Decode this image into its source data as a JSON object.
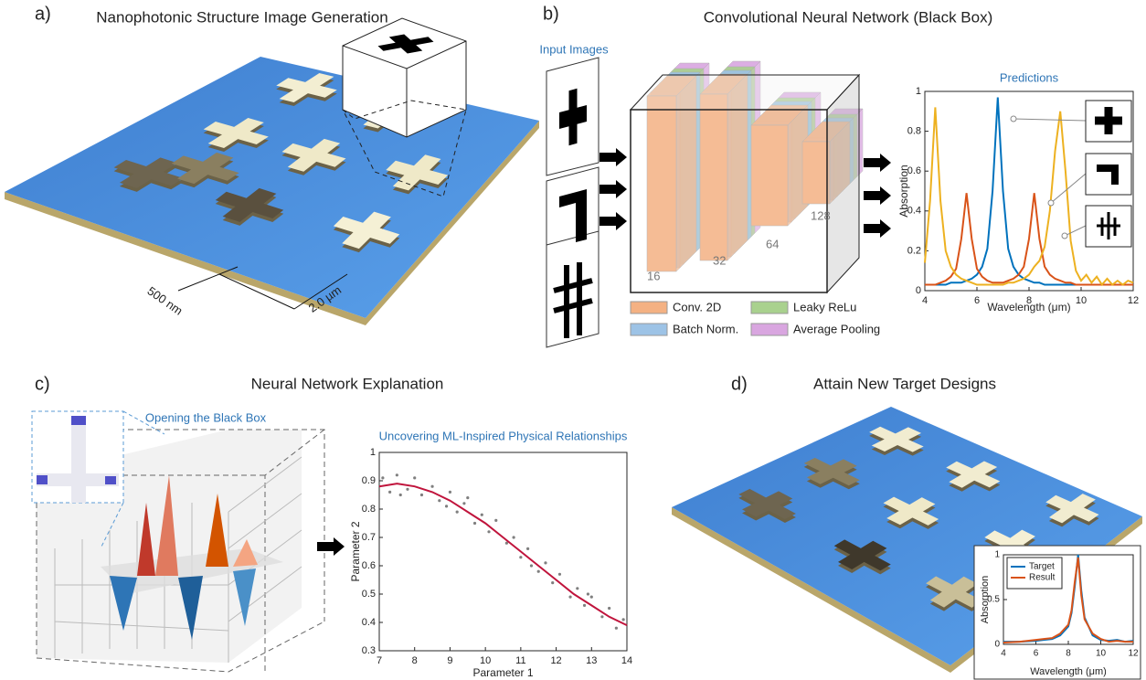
{
  "panels": [
    {
      "label": "a)",
      "title": "Nanophotonic Structure Image Generation",
      "annotations": [
        "500 nm",
        "2.0 µm"
      ]
    },
    {
      "label": "b)",
      "title": "Convolutional Neural Network (Black Box)",
      "input_title": "Input Images",
      "layer_sizes": [
        16,
        32,
        64,
        128
      ],
      "legend": [
        "Conv. 2D",
        "Leaky ReLu",
        "Batch Norm.",
        "Average Pooling"
      ]
    },
    {
      "label": "c)",
      "title": "Neural Network Explanation",
      "subtitle": "Opening the Black Box"
    },
    {
      "label": "d)",
      "title": "Attain New Target Designs"
    }
  ],
  "chart_data": [
    {
      "type": "line",
      "title": "Predictions",
      "xlabel": "Wavelength (μm)",
      "ylabel": "Absorption",
      "x": [
        4.0,
        4.2,
        4.4,
        4.6,
        4.8,
        5.0,
        5.2,
        5.4,
        5.6,
        5.8,
        6.0,
        6.2,
        6.4,
        6.6,
        6.8,
        7.0,
        7.2,
        7.4,
        7.6,
        7.8,
        8.0,
        8.2,
        8.4,
        8.6,
        8.8,
        9.0,
        9.2,
        9.4,
        9.6,
        9.8,
        10.0,
        10.2,
        10.4,
        10.6,
        10.8,
        11.0,
        11.2,
        11.4,
        11.6,
        11.8,
        12.0
      ],
      "series": [
        {
          "color": "#0072bd",
          "values": [
            0.03,
            0.03,
            0.03,
            0.03,
            0.03,
            0.04,
            0.04,
            0.04,
            0.05,
            0.06,
            0.08,
            0.12,
            0.21,
            0.5,
            0.97,
            0.5,
            0.21,
            0.12,
            0.08,
            0.06,
            0.05,
            0.04,
            0.04,
            0.03,
            0.03,
            0.03,
            0.03,
            0.03,
            0.03,
            0.03,
            0.03,
            0.03,
            0.03,
            0.03,
            0.03,
            0.03,
            0.03,
            0.03,
            0.03,
            0.03,
            0.03
          ]
        },
        {
          "color": "#d95319",
          "values": [
            0.03,
            0.03,
            0.03,
            0.04,
            0.05,
            0.07,
            0.11,
            0.26,
            0.49,
            0.26,
            0.11,
            0.07,
            0.05,
            0.04,
            0.04,
            0.04,
            0.05,
            0.06,
            0.08,
            0.12,
            0.26,
            0.49,
            0.26,
            0.12,
            0.08,
            0.06,
            0.05,
            0.04,
            0.04,
            0.03,
            0.03,
            0.03,
            0.03,
            0.03,
            0.03,
            0.03,
            0.03,
            0.03,
            0.03,
            0.03,
            0.03
          ]
        },
        {
          "color": "#edb120",
          "values": [
            0.14,
            0.45,
            0.92,
            0.45,
            0.2,
            0.12,
            0.08,
            0.06,
            0.05,
            0.04,
            0.03,
            0.03,
            0.03,
            0.03,
            0.03,
            0.03,
            0.04,
            0.04,
            0.05,
            0.06,
            0.08,
            0.12,
            0.15,
            0.22,
            0.4,
            0.7,
            0.9,
            0.6,
            0.25,
            0.1,
            0.05,
            0.08,
            0.04,
            0.07,
            0.03,
            0.06,
            0.03,
            0.05,
            0.03,
            0.05,
            0.04
          ]
        }
      ],
      "xlim": [
        4,
        12
      ],
      "xticks": [
        4,
        6,
        8,
        10,
        12
      ],
      "ylim": [
        0,
        1
      ],
      "yticks": [
        0,
        0.2,
        0.4,
        0.6,
        0.8,
        1
      ]
    },
    {
      "type": "scatter",
      "title": "Uncovering ML-Inspired Physical Relationships",
      "xlabel": "Parameter 1",
      "ylabel": "Parameter 2",
      "series": [
        {
          "color": "#7f7f7f",
          "mode": "markers",
          "x": [
            7.1,
            7.3,
            7.5,
            7.8,
            8.0,
            8.2,
            8.5,
            8.7,
            9.0,
            9.2,
            9.4,
            9.7,
            9.9,
            10.1,
            10.3,
            10.6,
            10.8,
            11.0,
            11.2,
            11.5,
            11.7,
            11.9,
            12.1,
            12.4,
            12.6,
            12.8,
            13.0,
            13.3,
            13.5,
            13.7,
            13.9,
            7.6,
            9.5,
            11.3,
            12.9,
            8.9
          ],
          "values": [
            0.91,
            0.86,
            0.92,
            0.87,
            0.91,
            0.85,
            0.88,
            0.83,
            0.86,
            0.79,
            0.82,
            0.75,
            0.78,
            0.72,
            0.76,
            0.68,
            0.7,
            0.63,
            0.66,
            0.58,
            0.61,
            0.54,
            0.57,
            0.49,
            0.52,
            0.46,
            0.49,
            0.42,
            0.45,
            0.38,
            0.41,
            0.85,
            0.84,
            0.6,
            0.5,
            0.81
          ]
        },
        {
          "color": "#c0143c",
          "mode": "line",
          "x": [
            7,
            7.5,
            8,
            8.5,
            9,
            9.5,
            10,
            10.5,
            11,
            11.5,
            12,
            12.5,
            13,
            13.5,
            14
          ],
          "values": [
            0.88,
            0.89,
            0.88,
            0.86,
            0.83,
            0.79,
            0.75,
            0.7,
            0.65,
            0.6,
            0.55,
            0.5,
            0.46,
            0.42,
            0.39
          ]
        }
      ],
      "xlim": [
        7,
        14
      ],
      "xticks": [
        7,
        8,
        9,
        10,
        11,
        12,
        13,
        14
      ],
      "ylim": [
        0.3,
        1
      ],
      "yticks": [
        0.3,
        0.4,
        0.5,
        0.6,
        0.7,
        0.8,
        0.9,
        1
      ]
    },
    {
      "type": "line",
      "xlabel": "Wavelength (μm)",
      "ylabel": "Absorption",
      "legend": "upper left",
      "x": [
        4,
        5,
        6,
        7,
        7.5,
        8,
        8.2,
        8.4,
        8.6,
        8.8,
        9,
        9.5,
        10,
        10.5,
        11,
        11.5,
        12
      ],
      "series": [
        {
          "name": "Target",
          "color": "#0072bd",
          "values": [
            0.03,
            0.03,
            0.04,
            0.06,
            0.1,
            0.2,
            0.35,
            0.65,
            1,
            0.6,
            0.3,
            0.1,
            0.05,
            0.04,
            0.05,
            0.03,
            0.04
          ]
        },
        {
          "name": "Result",
          "color": "#d95319",
          "values": [
            0.02,
            0.03,
            0.05,
            0.07,
            0.12,
            0.22,
            0.38,
            0.7,
            0.97,
            0.55,
            0.28,
            0.12,
            0.06,
            0.03,
            0.04,
            0.03,
            0.03
          ]
        }
      ],
      "xlim": [
        4,
        12
      ],
      "xticks": [
        4,
        6,
        8,
        10,
        12
      ],
      "ylim": [
        0,
        1
      ],
      "yticks": [
        0,
        0.5,
        1
      ]
    }
  ]
}
